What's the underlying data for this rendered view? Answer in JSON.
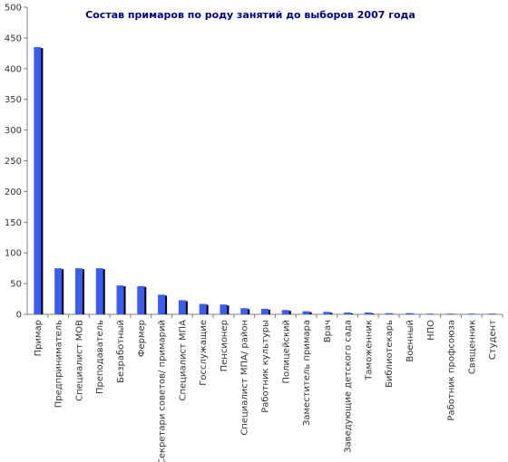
{
  "chart_data": {
    "type": "bar",
    "title": "Состав примаров по роду занятий до выборов 2007 года",
    "xlabel": "",
    "ylabel": "",
    "ylim": [
      0,
      500
    ],
    "yticks": [
      0,
      50,
      100,
      150,
      200,
      250,
      300,
      350,
      400,
      450,
      500
    ],
    "grid": false,
    "legend": "none",
    "colors": {
      "bar": "#3A5CF0",
      "bar_shadow": "#000000",
      "axis": "#808080"
    },
    "categories": [
      "Примар",
      "Предприниматель",
      "Специалист МОВ",
      "Преподаватель",
      "Безработный",
      "Фермер",
      "Секретари советов/ примарий",
      "Специалист МПА",
      "Госслужащие",
      "Пенсионер",
      "Специалист МПА/ район",
      "Работник культуры",
      "Полицейский",
      "Заместитель примара",
      "Врач",
      "Заведующие детского сада",
      "Таможенник",
      "Библиотекарь",
      "Военный",
      "НПО",
      "Работник профсоюза",
      "Священник",
      "Студент"
    ],
    "values": [
      435,
      75,
      75,
      75,
      47,
      46,
      32,
      23,
      17,
      16,
      10,
      9,
      7,
      5,
      4,
      3,
      3,
      2,
      2,
      1,
      1,
      1,
      1
    ]
  }
}
